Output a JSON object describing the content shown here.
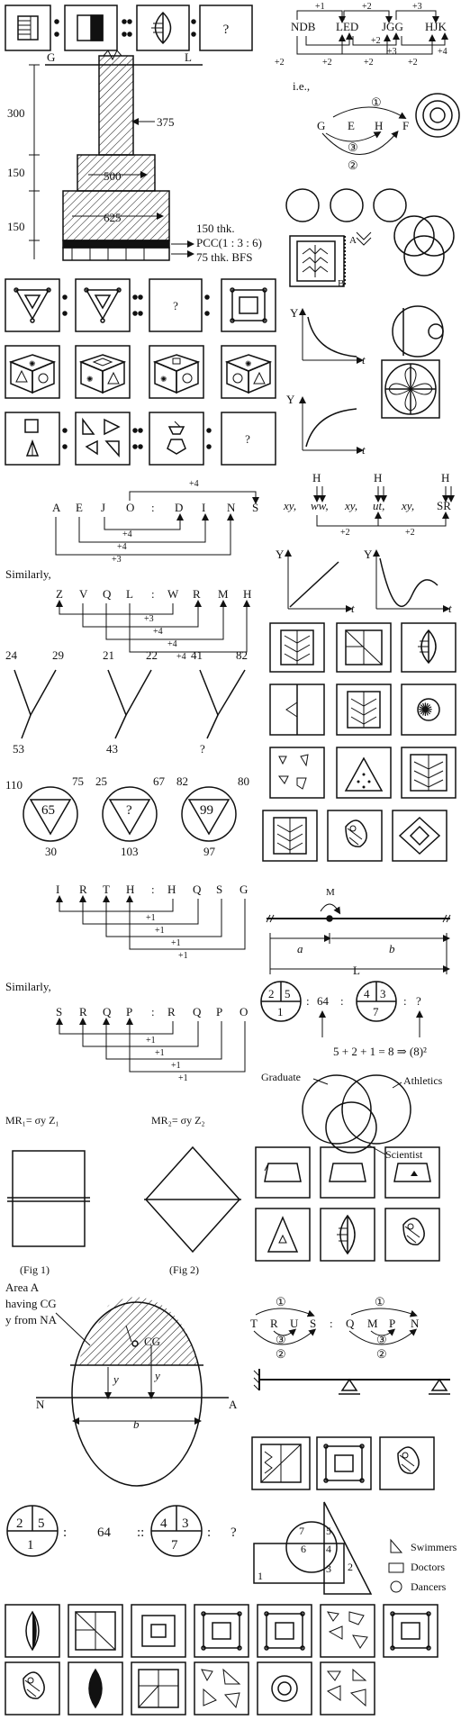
{
  "fig_seq1": {
    "q": "?"
  },
  "code1": {
    "w1": "NDB",
    "w2": "LED",
    "w3": "JGG",
    "w4": "HJK",
    "p1": "+1",
    "p2": "+2",
    "p3": "+3",
    "p4": "+2",
    "p5": "+2",
    "p6": "+2",
    "p7": "+2",
    "p8": "+3",
    "p9": "+2",
    "p10": "+4"
  },
  "ie": {
    "label": "i.e.,",
    "g": "G",
    "e": "E",
    "h": "H",
    "f": "F",
    "c1": "①",
    "c2": "②",
    "c3": "③"
  },
  "footing": {
    "g": "G",
    "l": "L",
    "d300": "300",
    "d150a": "150",
    "d150b": "150",
    "d375": "375",
    "d500": "500",
    "d625": "625",
    "t1": "150 thk.",
    "t2": "PCC(1 : 3 : 6)",
    "t3": "75 thk. BFS"
  },
  "q_mark": "?",
  "side": {
    "a": "A",
    "b": "B"
  },
  "graph": {
    "y": "Y",
    "t": "t"
  },
  "letters1": {
    "l": [
      "A",
      "E",
      "J",
      "O",
      ":",
      "D",
      "I",
      "N",
      "S"
    ],
    "d1": "+4",
    "d2": "+4",
    "d3": "+4",
    "d4": "+3"
  },
  "xy": {
    "a": "xy,",
    "b": "ww,",
    "c": "xy,",
    "d": "ut,",
    "e": "xy,",
    "f": "SR",
    "h": "H",
    "p1": "+2",
    "p2": "+2"
  },
  "similarly": "Similarly,",
  "letters2": {
    "l": [
      "Z",
      "V",
      "Q",
      "L",
      ":",
      "W",
      "R",
      "M",
      "H"
    ],
    "d1": "+3",
    "d2": "+4",
    "d3": "+4",
    "d4": "+4"
  },
  "numY": {
    "n": [
      "24",
      "29",
      "21",
      "22",
      "41",
      "82",
      "53",
      "43",
      "?"
    ]
  },
  "tri": {
    "a": [
      "110",
      "75",
      "65",
      "30"
    ],
    "b": [
      "25",
      "67",
      "?",
      "103"
    ],
    "c": [
      "82",
      "80",
      "99",
      "97"
    ]
  },
  "letters3": {
    "l": [
      "I",
      "R",
      "T",
      "H",
      ":",
      "H",
      "Q",
      "S",
      "G"
    ],
    "p": [
      "+1",
      "+1",
      "+1",
      "+1"
    ]
  },
  "beam1": {
    "m": "M",
    "a": "a",
    "b": "b",
    "l": "L"
  },
  "letters4": {
    "l": [
      "S",
      "R",
      "Q",
      "P",
      ":",
      "R",
      "Q",
      "P",
      "O"
    ],
    "p": [
      "+1",
      "+1",
      "+1",
      "+1"
    ]
  },
  "pie1": {
    "a": [
      "2",
      "5",
      "1"
    ],
    "colon": ":",
    "mid": "64",
    "b": [
      "4",
      "3",
      "7"
    ],
    "q": "?",
    "eq": "5 + 2 + 1 = 8 ⇒ (8)²"
  },
  "venn1": {
    "a": "Graduate",
    "b": "Athletics",
    "c": "Scientist"
  },
  "mr": {
    "a": "MR₁= σy Z₁",
    "b": "MR₂= σy Z₂",
    "f1": "(Fig 1)",
    "f2": "(Fig 2)"
  },
  "area": {
    "t1": "Area A",
    "t2": "having CG",
    "t3": "y from NA",
    "cg": "CG",
    "n": "N",
    "a": "A",
    "y": "y",
    "yb": "y",
    "b": "b"
  },
  "letters5": {
    "l": [
      "T",
      "R",
      "U",
      "S",
      ":",
      "Q",
      "M",
      "P",
      "N"
    ],
    "c1": "①",
    "c2": "②",
    "c3": "③"
  },
  "pie2": {
    "a": [
      "2",
      "5",
      "1"
    ],
    "mid": "64",
    "b": [
      "4",
      "3",
      "7"
    ],
    "q": "?"
  },
  "venn2": {
    "n": [
      "7",
      "5",
      "6",
      "4",
      "3",
      "2",
      "1"
    ],
    "s": "Swimmers",
    "d": "Doctors",
    "da": "Dancers"
  }
}
